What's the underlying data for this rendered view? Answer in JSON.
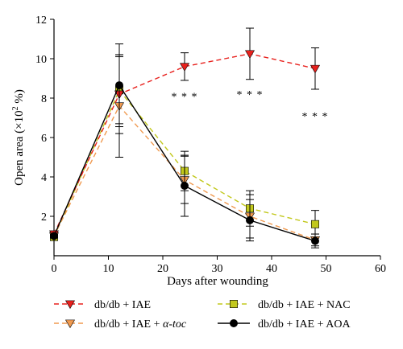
{
  "chart_data": {
    "type": "line",
    "title": "",
    "xlabel": "Days after wounding",
    "ylabel_main": "Open area (×10",
    "ylabel_sup": "2",
    "ylabel_tail": " %)",
    "xlim": [
      0,
      60
    ],
    "ylim": [
      0,
      12
    ],
    "x_ticks": [
      0,
      10,
      20,
      30,
      40,
      50,
      60
    ],
    "y_ticks": [
      2,
      4,
      6,
      8,
      10,
      12
    ],
    "x_tick_labels": [
      "0",
      "10",
      "20",
      "30",
      "40",
      "50",
      "60"
    ],
    "y_tick_labels": [
      "2",
      "4",
      "6",
      "8",
      "10",
      "12"
    ],
    "grid": false,
    "legend_position": "bottom",
    "x": [
      0,
      12,
      24,
      36,
      48
    ],
    "series": [
      {
        "name": "db/db + IAE",
        "name_greek": "",
        "values": [
          1.1,
          8.2,
          9.6,
          10.25,
          9.5
        ],
        "errors": [
          0.1,
          2.0,
          0.7,
          1.3,
          1.05
        ],
        "color": "#e8211d",
        "marker": "triangle-down",
        "dashed": true
      },
      {
        "name": "db/db + IAE + ",
        "name_greek": "α-toc",
        "values": [
          1.0,
          7.6,
          3.85,
          2.0,
          0.8
        ],
        "errors": [
          0.1,
          2.6,
          1.2,
          1.1,
          0.3
        ],
        "color": "#f09a50",
        "marker": "triangle-down",
        "dashed": true
      },
      {
        "name": "db/db + IAE + NAC",
        "name_greek": "",
        "values": [
          0.95,
          8.4,
          4.3,
          2.4,
          1.6
        ],
        "errors": [
          0.1,
          1.7,
          1.0,
          0.9,
          0.7
        ],
        "color": "#c2c81c",
        "marker": "square",
        "dashed": true
      },
      {
        "name": "db/db + IAE + AOA",
        "name_greek": "",
        "values": [
          1.0,
          8.65,
          3.55,
          1.8,
          0.75
        ],
        "errors": [
          0.1,
          2.1,
          1.55,
          1.05,
          0.35
        ],
        "color": "#000000",
        "marker": "circle",
        "dashed": false
      }
    ],
    "annotations": [
      {
        "text": "* * *",
        "x": 24,
        "y": 7.9
      },
      {
        "text": "* * *",
        "x": 36,
        "y": 8.0
      },
      {
        "text": "* * *",
        "x": 48,
        "y": 6.9
      }
    ]
  }
}
